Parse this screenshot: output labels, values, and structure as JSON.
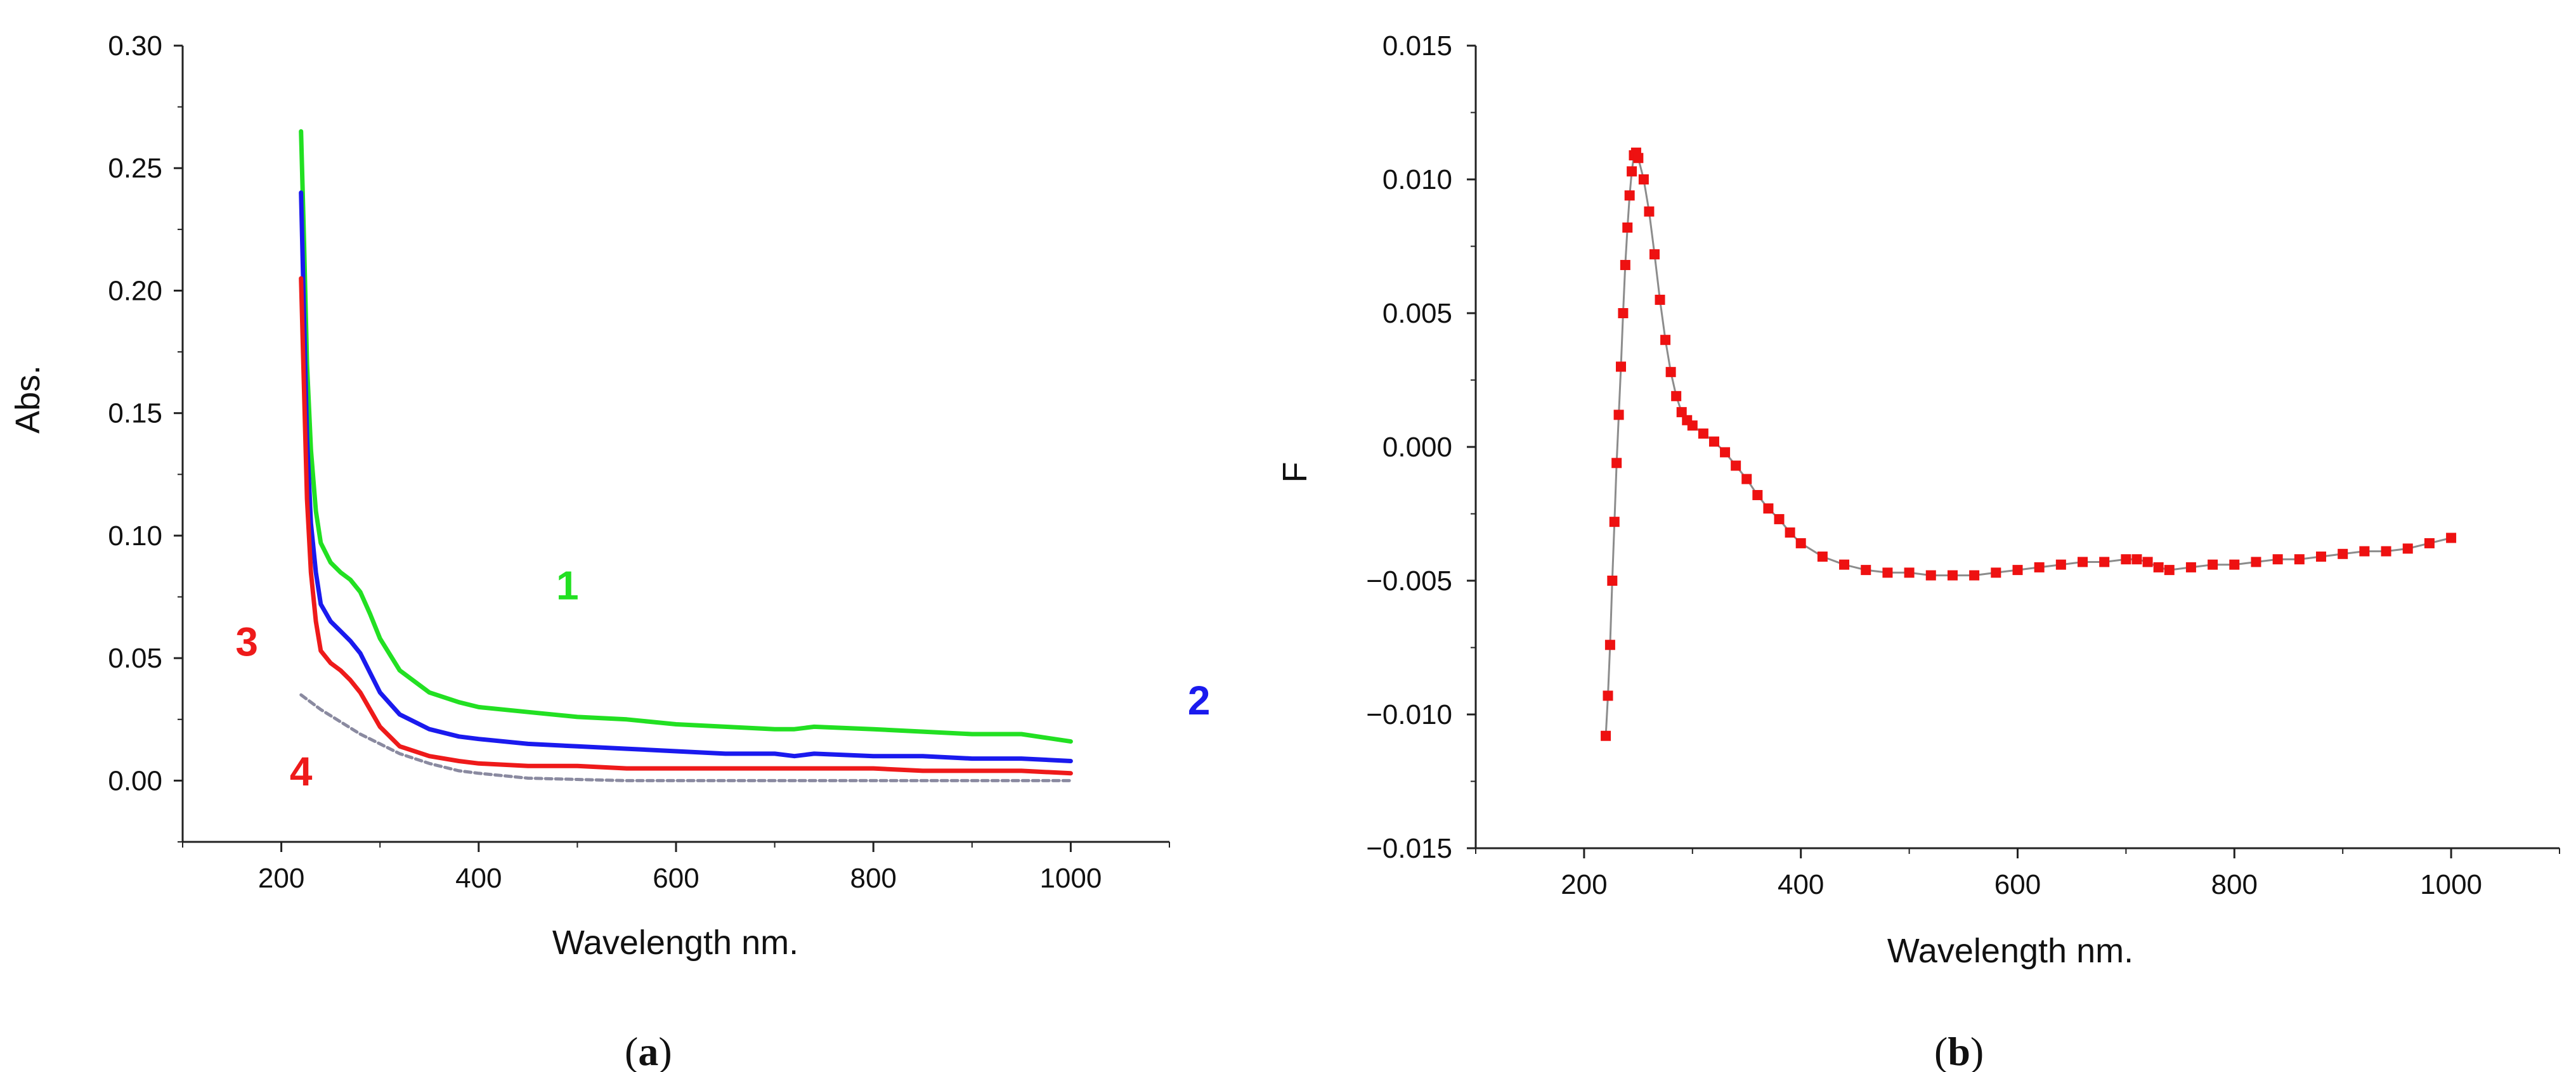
{
  "chart_data": [
    {
      "id": "a",
      "type": "line",
      "caption_letter": "a",
      "xlabel": "Wavelength nm.",
      "ylabel": "Abs.",
      "xlim": [
        100,
        1100
      ],
      "ylim": [
        -0.025,
        0.3
      ],
      "xticks": [
        200,
        400,
        600,
        800,
        1000
      ],
      "yticks": [
        0.0,
        0.05,
        0.1,
        0.15,
        0.2,
        0.25,
        0.3
      ],
      "ytick_labels": [
        "0.00",
        "0.05",
        "0.10",
        "0.15",
        "0.20",
        "0.25",
        "0.30"
      ],
      "xtick_labels": [
        "200",
        "400",
        "600",
        "800",
        "1000"
      ],
      "series": [
        {
          "name": "1",
          "color": "#22e022",
          "x": [
            220,
            223,
            226,
            230,
            235,
            240,
            250,
            260,
            270,
            280,
            290,
            300,
            320,
            350,
            380,
            400,
            450,
            500,
            550,
            600,
            650,
            700,
            720,
            740,
            800,
            850,
            900,
            950,
            1000
          ],
          "y": [
            0.265,
            0.22,
            0.17,
            0.135,
            0.11,
            0.097,
            0.089,
            0.085,
            0.082,
            0.077,
            0.068,
            0.058,
            0.045,
            0.036,
            0.032,
            0.03,
            0.028,
            0.026,
            0.025,
            0.023,
            0.022,
            0.021,
            0.021,
            0.022,
            0.021,
            0.02,
            0.019,
            0.019,
            0.016
          ]
        },
        {
          "name": "2",
          "color": "#1a1aee",
          "x": [
            220,
            223,
            226,
            230,
            235,
            240,
            250,
            260,
            270,
            280,
            290,
            300,
            320,
            350,
            380,
            400,
            450,
            500,
            550,
            600,
            650,
            700,
            720,
            740,
            800,
            850,
            900,
            950,
            1000
          ],
          "y": [
            0.24,
            0.19,
            0.14,
            0.105,
            0.085,
            0.072,
            0.065,
            0.061,
            0.057,
            0.052,
            0.044,
            0.036,
            0.027,
            0.021,
            0.018,
            0.017,
            0.015,
            0.014,
            0.013,
            0.012,
            0.011,
            0.011,
            0.01,
            0.011,
            0.01,
            0.01,
            0.009,
            0.009,
            0.008
          ]
        },
        {
          "name": "3",
          "color": "#ee1a1a",
          "x": [
            220,
            223,
            226,
            230,
            235,
            240,
            250,
            260,
            270,
            280,
            290,
            300,
            320,
            350,
            380,
            400,
            450,
            500,
            550,
            600,
            650,
            700,
            720,
            740,
            800,
            850,
            900,
            950,
            1000
          ],
          "y": [
            0.205,
            0.16,
            0.115,
            0.085,
            0.065,
            0.053,
            0.048,
            0.045,
            0.041,
            0.036,
            0.029,
            0.022,
            0.014,
            0.01,
            0.008,
            0.007,
            0.006,
            0.006,
            0.005,
            0.005,
            0.005,
            0.005,
            0.005,
            0.005,
            0.005,
            0.004,
            0.004,
            0.004,
            0.003
          ]
        },
        {
          "name": "4",
          "color": "#8a8aa0",
          "dashed": true,
          "x": [
            220,
            240,
            260,
            280,
            300,
            320,
            350,
            380,
            400,
            450,
            500,
            550,
            600,
            700,
            800,
            900,
            1000
          ],
          "y": [
            0.035,
            0.029,
            0.024,
            0.019,
            0.015,
            0.011,
            0.007,
            0.004,
            0.003,
            0.001,
            0.0005,
            0.0,
            0.0,
            0.0,
            0.0,
            0.0,
            0.0
          ]
        }
      ],
      "annotations": [
        {
          "text": "1",
          "color": "#22e022",
          "x": 490,
          "y": 0.074
        },
        {
          "text": "2",
          "color": "#1a1aee",
          "x": 1130,
          "y": 0.027
        },
        {
          "text": "3",
          "color": "#ee1a1a",
          "x": 165,
          "y": 0.051
        },
        {
          "text": "4",
          "color": "#ee1a1a",
          "x": 220,
          "y": -0.002
        }
      ]
    },
    {
      "id": "b",
      "type": "scatter",
      "caption_letter": "b",
      "xlabel": "Wavelength nm.",
      "ylabel": "F",
      "xlim": [
        100,
        1100
      ],
      "ylim": [
        -0.015,
        0.015
      ],
      "xticks": [
        200,
        400,
        600,
        800,
        1000
      ],
      "yticks": [
        -0.015,
        -0.01,
        -0.005,
        0.0,
        0.005,
        0.01,
        0.015
      ],
      "ytick_labels": [
        "−0.015",
        "−0.010",
        "−0.005",
        "0.000",
        "0.005",
        "0.010",
        "0.015"
      ],
      "xtick_labels": [
        "200",
        "400",
        "600",
        "800",
        "1000"
      ],
      "series": [
        {
          "name": "F",
          "color": "#ee1111",
          "line_color": "#8c8c8c",
          "x": [
            220,
            222,
            224,
            226,
            228,
            230,
            232,
            234,
            236,
            238,
            240,
            242,
            244,
            246,
            248,
            250,
            255,
            260,
            265,
            270,
            275,
            280,
            285,
            290,
            295,
            300,
            310,
            320,
            330,
            340,
            350,
            360,
            370,
            380,
            390,
            400,
            420,
            440,
            460,
            480,
            500,
            520,
            540,
            560,
            580,
            600,
            620,
            640,
            660,
            680,
            700,
            710,
            720,
            730,
            740,
            760,
            780,
            800,
            820,
            840,
            860,
            880,
            900,
            920,
            940,
            960,
            980,
            1000
          ],
          "y": [
            -0.0108,
            -0.0093,
            -0.0074,
            -0.005,
            -0.0028,
            -0.0006,
            0.0012,
            0.003,
            0.005,
            0.0068,
            0.0082,
            0.0094,
            0.0103,
            0.0109,
            0.011,
            0.0108,
            0.01,
            0.0088,
            0.0072,
            0.0055,
            0.004,
            0.0028,
            0.0019,
            0.0013,
            0.001,
            0.0008,
            0.0005,
            0.0002,
            -0.0002,
            -0.0007,
            -0.0012,
            -0.0018,
            -0.0023,
            -0.0027,
            -0.0032,
            -0.0036,
            -0.0041,
            -0.0044,
            -0.0046,
            -0.0047,
            -0.0047,
            -0.0048,
            -0.0048,
            -0.0048,
            -0.0047,
            -0.0046,
            -0.0045,
            -0.0044,
            -0.0043,
            -0.0043,
            -0.0042,
            -0.0042,
            -0.0043,
            -0.0045,
            -0.0046,
            -0.0045,
            -0.0044,
            -0.0044,
            -0.0043,
            -0.0042,
            -0.0042,
            -0.0041,
            -0.004,
            -0.0039,
            -0.0039,
            -0.0038,
            -0.0036,
            -0.0034
          ]
        }
      ],
      "annotations": []
    }
  ]
}
